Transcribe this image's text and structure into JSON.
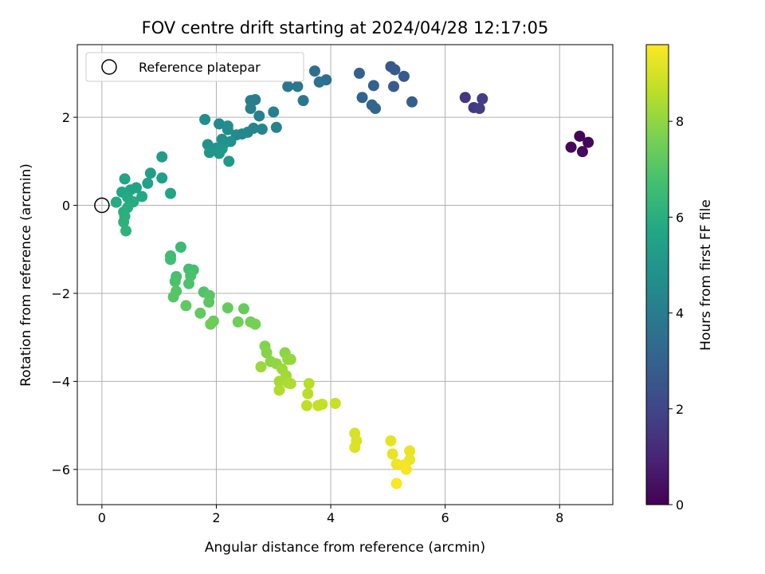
{
  "chart_data": {
    "type": "scatter",
    "title": "FOV centre drift starting at 2024/04/28 12:17:05",
    "xlabel": "Angular distance from reference (arcmin)",
    "ylabel": "Rotation from reference (arcmin)",
    "xlim": [
      -0.43,
      8.93
    ],
    "ylim": [
      -6.8,
      3.65
    ],
    "xticks": [
      0,
      2,
      4,
      6,
      8
    ],
    "yticks": [
      -6,
      -4,
      -2,
      0,
      2
    ],
    "grid": true,
    "legend": {
      "position": "top-left",
      "entries": [
        "Reference platepar"
      ]
    },
    "reference_point": {
      "x": 0,
      "y": 0,
      "label": "Reference platepar"
    },
    "colorbar": {
      "label": "Hours from first FF file",
      "range": [
        0,
        9.6
      ],
      "ticks": [
        0,
        2,
        4,
        6,
        8
      ],
      "colormap": "viridis"
    },
    "points": [
      {
        "x": 8.35,
        "y": 1.57,
        "h": 0.1
      },
      {
        "x": 8.5,
        "y": 1.43,
        "h": 0.15
      },
      {
        "x": 8.2,
        "y": 1.32,
        "h": 0.2
      },
      {
        "x": 8.4,
        "y": 1.22,
        "h": 0.25
      },
      {
        "x": 6.35,
        "y": 2.45,
        "h": 1.5
      },
      {
        "x": 6.5,
        "y": 2.22,
        "h": 1.6
      },
      {
        "x": 6.6,
        "y": 2.2,
        "h": 1.7
      },
      {
        "x": 6.65,
        "y": 2.42,
        "h": 1.75
      },
      {
        "x": 5.05,
        "y": 3.15,
        "h": 2.6
      },
      {
        "x": 5.12,
        "y": 3.08,
        "h": 2.65
      },
      {
        "x": 5.28,
        "y": 2.93,
        "h": 2.7
      },
      {
        "x": 5.1,
        "y": 2.7,
        "h": 2.75
      },
      {
        "x": 5.42,
        "y": 2.35,
        "h": 2.8
      },
      {
        "x": 4.5,
        "y": 3.0,
        "h": 3.0
      },
      {
        "x": 4.75,
        "y": 2.72,
        "h": 3.05
      },
      {
        "x": 4.55,
        "y": 2.45,
        "h": 3.1
      },
      {
        "x": 4.72,
        "y": 2.28,
        "h": 3.15
      },
      {
        "x": 4.78,
        "y": 2.2,
        "h": 3.2
      },
      {
        "x": 3.72,
        "y": 3.05,
        "h": 3.5
      },
      {
        "x": 3.92,
        "y": 2.85,
        "h": 3.55
      },
      {
        "x": 3.8,
        "y": 2.8,
        "h": 3.6
      },
      {
        "x": 3.25,
        "y": 2.7,
        "h": 3.75
      },
      {
        "x": 3.42,
        "y": 2.7,
        "h": 3.8
      },
      {
        "x": 3.52,
        "y": 2.38,
        "h": 3.85
      },
      {
        "x": 2.68,
        "y": 2.4,
        "h": 4.0
      },
      {
        "x": 2.6,
        "y": 2.38,
        "h": 4.05
      },
      {
        "x": 2.6,
        "y": 2.2,
        "h": 4.1
      },
      {
        "x": 2.75,
        "y": 2.03,
        "h": 4.15
      },
      {
        "x": 3.0,
        "y": 2.12,
        "h": 4.2
      },
      {
        "x": 3.05,
        "y": 1.77,
        "h": 4.25
      },
      {
        "x": 2.8,
        "y": 1.73,
        "h": 4.3
      },
      {
        "x": 2.65,
        "y": 1.75,
        "h": 4.35
      },
      {
        "x": 2.55,
        "y": 1.66,
        "h": 4.4
      },
      {
        "x": 2.45,
        "y": 1.62,
        "h": 4.45
      },
      {
        "x": 2.35,
        "y": 1.6,
        "h": 4.5
      },
      {
        "x": 2.05,
        "y": 1.85,
        "h": 4.55
      },
      {
        "x": 2.2,
        "y": 1.8,
        "h": 4.6
      },
      {
        "x": 2.2,
        "y": 1.72,
        "h": 4.65
      },
      {
        "x": 1.8,
        "y": 1.95,
        "h": 4.7
      },
      {
        "x": 2.1,
        "y": 1.5,
        "h": 4.75
      },
      {
        "x": 2.25,
        "y": 1.45,
        "h": 4.8
      },
      {
        "x": 2.15,
        "y": 1.42,
        "h": 4.85
      },
      {
        "x": 1.85,
        "y": 1.38,
        "h": 4.9
      },
      {
        "x": 2.0,
        "y": 1.3,
        "h": 4.95
      },
      {
        "x": 2.1,
        "y": 1.28,
        "h": 5.0
      },
      {
        "x": 1.88,
        "y": 1.2,
        "h": 5.05
      },
      {
        "x": 2.05,
        "y": 1.18,
        "h": 5.1
      },
      {
        "x": 2.22,
        "y": 1.0,
        "h": 5.15
      },
      {
        "x": 1.05,
        "y": 1.1,
        "h": 5.3
      },
      {
        "x": 0.85,
        "y": 0.73,
        "h": 5.35
      },
      {
        "x": 1.05,
        "y": 0.62,
        "h": 5.4
      },
      {
        "x": 0.8,
        "y": 0.5,
        "h": 5.45
      },
      {
        "x": 0.6,
        "y": 0.4,
        "h": 5.5
      },
      {
        "x": 0.5,
        "y": 0.35,
        "h": 5.55
      },
      {
        "x": 0.4,
        "y": 0.6,
        "h": 5.6
      },
      {
        "x": 1.2,
        "y": 0.27,
        "h": 5.65
      },
      {
        "x": 0.35,
        "y": 0.3,
        "h": 5.7
      },
      {
        "x": 0.7,
        "y": 0.2,
        "h": 5.75
      },
      {
        "x": 0.45,
        "y": 0.18,
        "h": 5.8
      },
      {
        "x": 0.25,
        "y": 0.07,
        "h": 5.85
      },
      {
        "x": 0.55,
        "y": 0.08,
        "h": 5.9
      },
      {
        "x": 0.45,
        "y": -0.05,
        "h": 5.95
      },
      {
        "x": 0.38,
        "y": -0.15,
        "h": 6.0
      },
      {
        "x": 0.4,
        "y": -0.25,
        "h": 6.05
      },
      {
        "x": 0.38,
        "y": -0.38,
        "h": 6.1
      },
      {
        "x": 0.42,
        "y": -0.58,
        "h": 6.15
      },
      {
        "x": 1.38,
        "y": -0.95,
        "h": 6.5
      },
      {
        "x": 1.2,
        "y": -1.15,
        "h": 6.55
      },
      {
        "x": 1.2,
        "y": -1.23,
        "h": 6.6
      },
      {
        "x": 1.52,
        "y": -1.45,
        "h": 6.65
      },
      {
        "x": 1.6,
        "y": -1.47,
        "h": 6.7
      },
      {
        "x": 1.3,
        "y": -1.62,
        "h": 6.75
      },
      {
        "x": 1.55,
        "y": -1.6,
        "h": 6.8
      },
      {
        "x": 1.28,
        "y": -1.73,
        "h": 6.85
      },
      {
        "x": 1.52,
        "y": -1.78,
        "h": 6.9
      },
      {
        "x": 1.78,
        "y": -1.97,
        "h": 6.95
      },
      {
        "x": 1.3,
        "y": -1.95,
        "h": 7.0
      },
      {
        "x": 1.25,
        "y": -2.08,
        "h": 7.05
      },
      {
        "x": 1.88,
        "y": -2.05,
        "h": 7.1
      },
      {
        "x": 1.87,
        "y": -2.2,
        "h": 7.15
      },
      {
        "x": 1.47,
        "y": -2.28,
        "h": 7.2
      },
      {
        "x": 1.72,
        "y": -2.45,
        "h": 7.25
      },
      {
        "x": 2.2,
        "y": -2.33,
        "h": 7.3
      },
      {
        "x": 2.48,
        "y": -2.35,
        "h": 7.35
      },
      {
        "x": 1.95,
        "y": -2.63,
        "h": 7.4
      },
      {
        "x": 1.9,
        "y": -2.7,
        "h": 7.45
      },
      {
        "x": 2.38,
        "y": -2.65,
        "h": 7.5
      },
      {
        "x": 2.6,
        "y": -2.65,
        "h": 7.55
      },
      {
        "x": 2.68,
        "y": -2.7,
        "h": 7.6
      },
      {
        "x": 2.85,
        "y": -3.2,
        "h": 7.8
      },
      {
        "x": 2.88,
        "y": -3.35,
        "h": 7.85
      },
      {
        "x": 3.2,
        "y": -3.35,
        "h": 7.9
      },
      {
        "x": 2.95,
        "y": -3.55,
        "h": 7.95
      },
      {
        "x": 3.05,
        "y": -3.6,
        "h": 8.0
      },
      {
        "x": 3.3,
        "y": -3.5,
        "h": 8.05
      },
      {
        "x": 3.25,
        "y": -3.5,
        "h": 8.1
      },
      {
        "x": 2.78,
        "y": -3.67,
        "h": 8.15
      },
      {
        "x": 3.15,
        "y": -3.72,
        "h": 8.2
      },
      {
        "x": 3.22,
        "y": -3.87,
        "h": 8.25
      },
      {
        "x": 3.1,
        "y": -4.0,
        "h": 8.3
      },
      {
        "x": 3.25,
        "y": -4.03,
        "h": 8.35
      },
      {
        "x": 3.3,
        "y": -4.05,
        "h": 8.4
      },
      {
        "x": 3.1,
        "y": -4.2,
        "h": 8.45
      },
      {
        "x": 3.62,
        "y": -4.05,
        "h": 8.55
      },
      {
        "x": 3.6,
        "y": -4.28,
        "h": 8.6
      },
      {
        "x": 3.58,
        "y": -4.55,
        "h": 8.65
      },
      {
        "x": 3.78,
        "y": -4.55,
        "h": 8.7
      },
      {
        "x": 3.85,
        "y": -4.52,
        "h": 8.75
      },
      {
        "x": 4.08,
        "y": -4.5,
        "h": 8.8
      },
      {
        "x": 4.42,
        "y": -5.18,
        "h": 9.0
      },
      {
        "x": 4.45,
        "y": -5.35,
        "h": 9.05
      },
      {
        "x": 4.42,
        "y": -5.5,
        "h": 9.1
      },
      {
        "x": 5.05,
        "y": -5.35,
        "h": 9.2
      },
      {
        "x": 5.08,
        "y": -5.65,
        "h": 9.25
      },
      {
        "x": 5.38,
        "y": -5.58,
        "h": 9.3
      },
      {
        "x": 5.38,
        "y": -5.78,
        "h": 9.35
      },
      {
        "x": 5.15,
        "y": -5.88,
        "h": 9.4
      },
      {
        "x": 5.28,
        "y": -5.9,
        "h": 9.45
      },
      {
        "x": 5.32,
        "y": -6.0,
        "h": 9.5
      },
      {
        "x": 5.15,
        "y": -6.32,
        "h": 9.55
      }
    ]
  }
}
